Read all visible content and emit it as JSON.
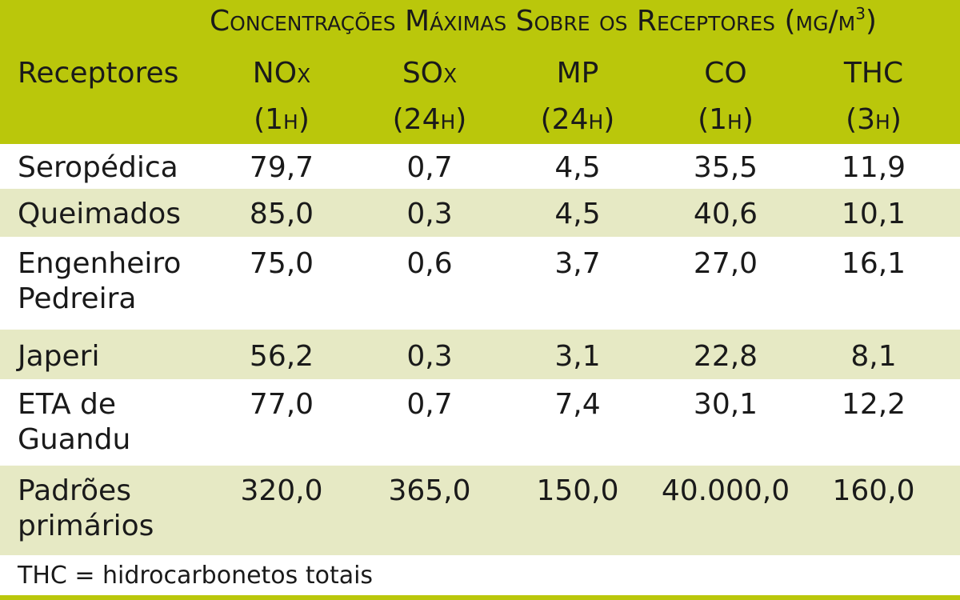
{
  "title": "Concentrações Máximas Sobre os Receptores (μg/m",
  "title_sup": "3",
  "title_close": ")",
  "header_label": "Receptores",
  "pollutants": [
    {
      "name": "NO",
      "sub": "x",
      "period": "(1h)"
    },
    {
      "name": "SO",
      "sub": "x",
      "period": "(24h)"
    },
    {
      "name": "MP",
      "sub": "",
      "period": "(24h)"
    },
    {
      "name": "CO",
      "sub": "",
      "period": "(1h)"
    },
    {
      "name": "THC",
      "sub": "",
      "period": "(3h)"
    }
  ],
  "rows": [
    {
      "label": [
        "Seropédica"
      ],
      "values": [
        "79,7",
        "0,7",
        "4,5",
        "35,5",
        "11,9"
      ]
    },
    {
      "label": [
        "Queimados"
      ],
      "values": [
        "85,0",
        "0,3",
        "4,5",
        "40,6",
        "10,1"
      ]
    },
    {
      "label": [
        "Engenheiro",
        "Pedreira"
      ],
      "values": [
        "75,0",
        "0,6",
        "3,7",
        "27,0",
        "16,1"
      ]
    },
    {
      "label": [
        "Japeri"
      ],
      "values": [
        "56,2",
        "0,3",
        "3,1",
        "22,8",
        "8,1"
      ]
    },
    {
      "label": [
        "ETA de",
        "Guandu"
      ],
      "values": [
        "77,0",
        "0,7",
        "7,4",
        "30,1",
        "12,2"
      ]
    },
    {
      "label": [
        "Padrões",
        "primários"
      ],
      "values": [
        "320,0",
        "365,0",
        "150,0",
        "40.000,0",
        "160,0"
      ]
    }
  ],
  "footnote": "THC = hidrocarbonetos totais",
  "colors": {
    "header_bg": "#bac70b",
    "shade_bg": "#e6e9c4",
    "text": "#1a1a1a"
  }
}
